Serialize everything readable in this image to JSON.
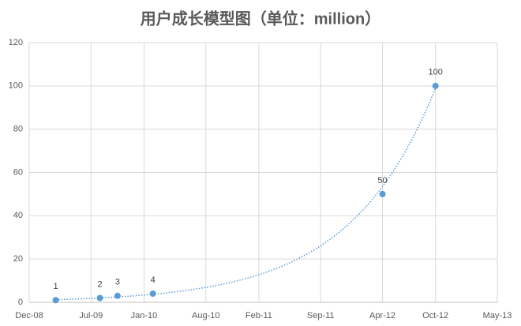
{
  "chart_data": {
    "type": "scatter",
    "title": "用户成长模型图（单位：million）",
    "x": [
      "2009-03",
      "2009-08",
      "2009-10",
      "2010-02",
      "2012-04",
      "2012-10"
    ],
    "values": [
      1,
      2,
      3,
      4,
      50,
      100
    ],
    "color": "#5b9bd5",
    "trendline": "exponential",
    "xlim": [
      "2008-12",
      "2013-05"
    ],
    "xticks": [
      {
        "value": "2008-12",
        "label": "Dec-08"
      },
      {
        "value": "2009-07",
        "label": "Jul-09"
      },
      {
        "value": "2010-01",
        "label": "Jan-10"
      },
      {
        "value": "2010-08",
        "label": "Aug-10"
      },
      {
        "value": "2011-02",
        "label": "Feb-11"
      },
      {
        "value": "2011-09",
        "label": "Sep-11"
      },
      {
        "value": "2012-04",
        "label": "Apr-12"
      },
      {
        "value": "2012-10",
        "label": "Oct-12"
      },
      {
        "value": "2013-05",
        "label": "May-13"
      }
    ],
    "ylim": [
      0,
      120
    ],
    "yticks": [
      0,
      20,
      40,
      60,
      80,
      100,
      120
    ],
    "grid": true
  }
}
